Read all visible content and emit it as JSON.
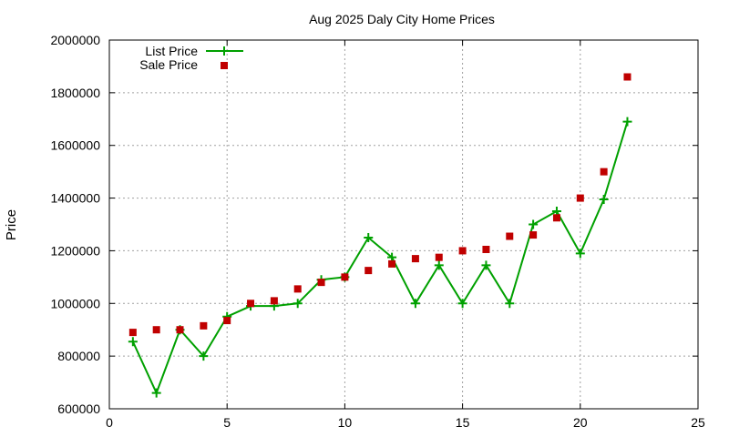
{
  "chart_data": {
    "type": "line",
    "title": "Aug 2025 Daly City Home Prices",
    "xlabel": "",
    "ylabel": "Price",
    "xlim": [
      0,
      25
    ],
    "ylim": [
      600000,
      2000000
    ],
    "xticks": [
      0,
      5,
      10,
      15,
      20,
      25
    ],
    "yticks": [
      600000,
      800000,
      1000000,
      1200000,
      1400000,
      1600000,
      1800000,
      2000000
    ],
    "grid": true,
    "legend_position": "top-left",
    "series": [
      {
        "name": "List Price",
        "style": "line+cross",
        "color": "#00a000",
        "x": [
          1,
          2,
          3,
          4,
          5,
          6,
          7,
          8,
          9,
          10,
          11,
          12,
          13,
          14,
          15,
          16,
          17,
          18,
          19,
          20,
          21,
          22
        ],
        "y": [
          855000,
          660000,
          900000,
          800000,
          950000,
          990000,
          990000,
          1000000,
          1090000,
          1100000,
          1250000,
          1175000,
          1000000,
          1145000,
          1000000,
          1145000,
          1000000,
          1300000,
          1350000,
          1190000,
          1395000,
          1690000
        ]
      },
      {
        "name": "Sale Price",
        "style": "square",
        "color": "#c00000",
        "x": [
          1,
          2,
          3,
          4,
          5,
          6,
          7,
          8,
          9,
          10,
          11,
          12,
          13,
          14,
          15,
          16,
          17,
          18,
          19,
          20,
          21,
          22
        ],
        "y": [
          890000,
          900000,
          900000,
          915000,
          935000,
          1000000,
          1010000,
          1055000,
          1080000,
          1100000,
          1125000,
          1150000,
          1170000,
          1175000,
          1200000,
          1205000,
          1255000,
          1260000,
          1325000,
          1400000,
          1500000,
          1860000
        ]
      }
    ]
  }
}
